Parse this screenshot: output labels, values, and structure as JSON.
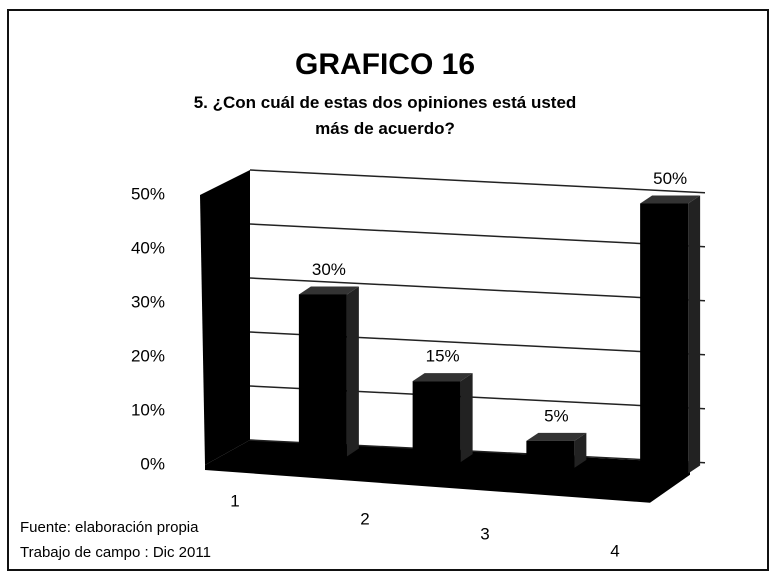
{
  "chart_data": {
    "type": "bar3d",
    "title": "GRAFICO 16",
    "subtitle": "5. ¿Con cuál de estas dos opiniones está usted más de acuerdo?",
    "categories": [
      "1",
      "2",
      "3",
      "4"
    ],
    "values": [
      30,
      15,
      5,
      50
    ],
    "value_labels": [
      "30%",
      "15%",
      "5%",
      "50%"
    ],
    "color": "#000000",
    "ylim": [
      0,
      50
    ],
    "yticks": [
      {
        "value": 0,
        "label": "0%"
      },
      {
        "value": 10,
        "label": "10%"
      },
      {
        "value": 20,
        "label": "20%"
      },
      {
        "value": 30,
        "label": "30%"
      },
      {
        "value": 40,
        "label": "40%"
      },
      {
        "value": 50,
        "label": "50%"
      }
    ],
    "grid": true,
    "notes": [
      "Fuente: elaboración propia",
      "Trabajo de campo : Dic 2011"
    ]
  }
}
